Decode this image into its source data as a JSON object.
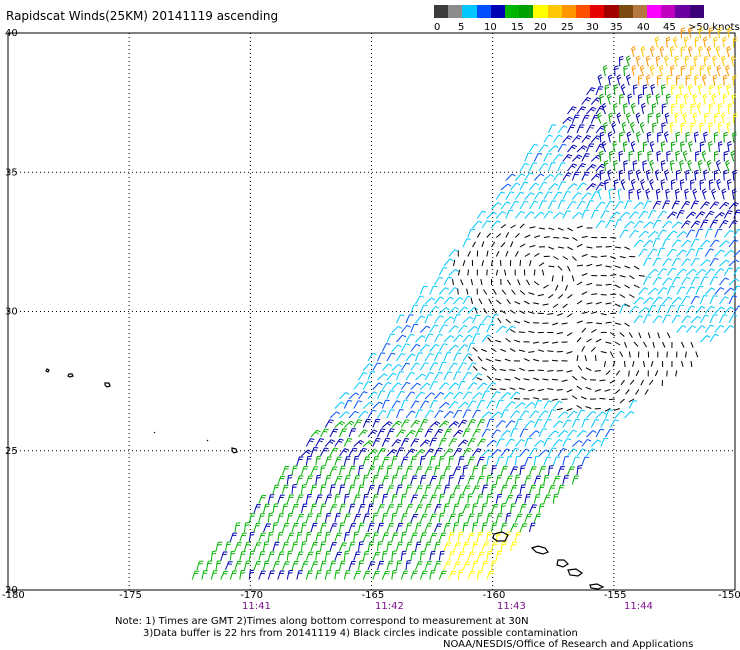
{
  "title": "Rapidscat Winds(25KM) 20141119 ascending",
  "colorbar": {
    "colors": [
      "#3c3c3c",
      "#8c8c8c",
      "#00c8ff",
      "#0050ff",
      "#0000b4",
      "#00b400",
      "#00a000",
      "#ffff00",
      "#ffc800",
      "#ff9600",
      "#ff5000",
      "#e60000",
      "#a00000",
      "#7a4a10",
      "#b47840",
      "#ff00ff",
      "#c000c0",
      "#6a00a0",
      "#3c0078"
    ],
    "labels": [
      "0",
      "5",
      "10",
      "15",
      "20",
      "25",
      "30",
      "35",
      "40",
      "45",
      ">50 knots"
    ]
  },
  "axes": {
    "y_labels": [
      "40",
      "35",
      "30",
      "25",
      "20"
    ],
    "x_labels": [
      "-180",
      "-175",
      "-170",
      "-165",
      "-160",
      "-155",
      "-150"
    ],
    "time_labels": [
      "11:41",
      "11:42",
      "11:43",
      "11:44"
    ]
  },
  "notes": {
    "line1": "Note: 1) Times are GMT 2)Times along bottom correspond to measurement at 30N",
    "line2": "3)Data buffer is 22 hrs from 20141119 4) Black circles indicate possible contamination"
  },
  "credit": "NOAA/NESDIS/Office of Research and Applications"
}
